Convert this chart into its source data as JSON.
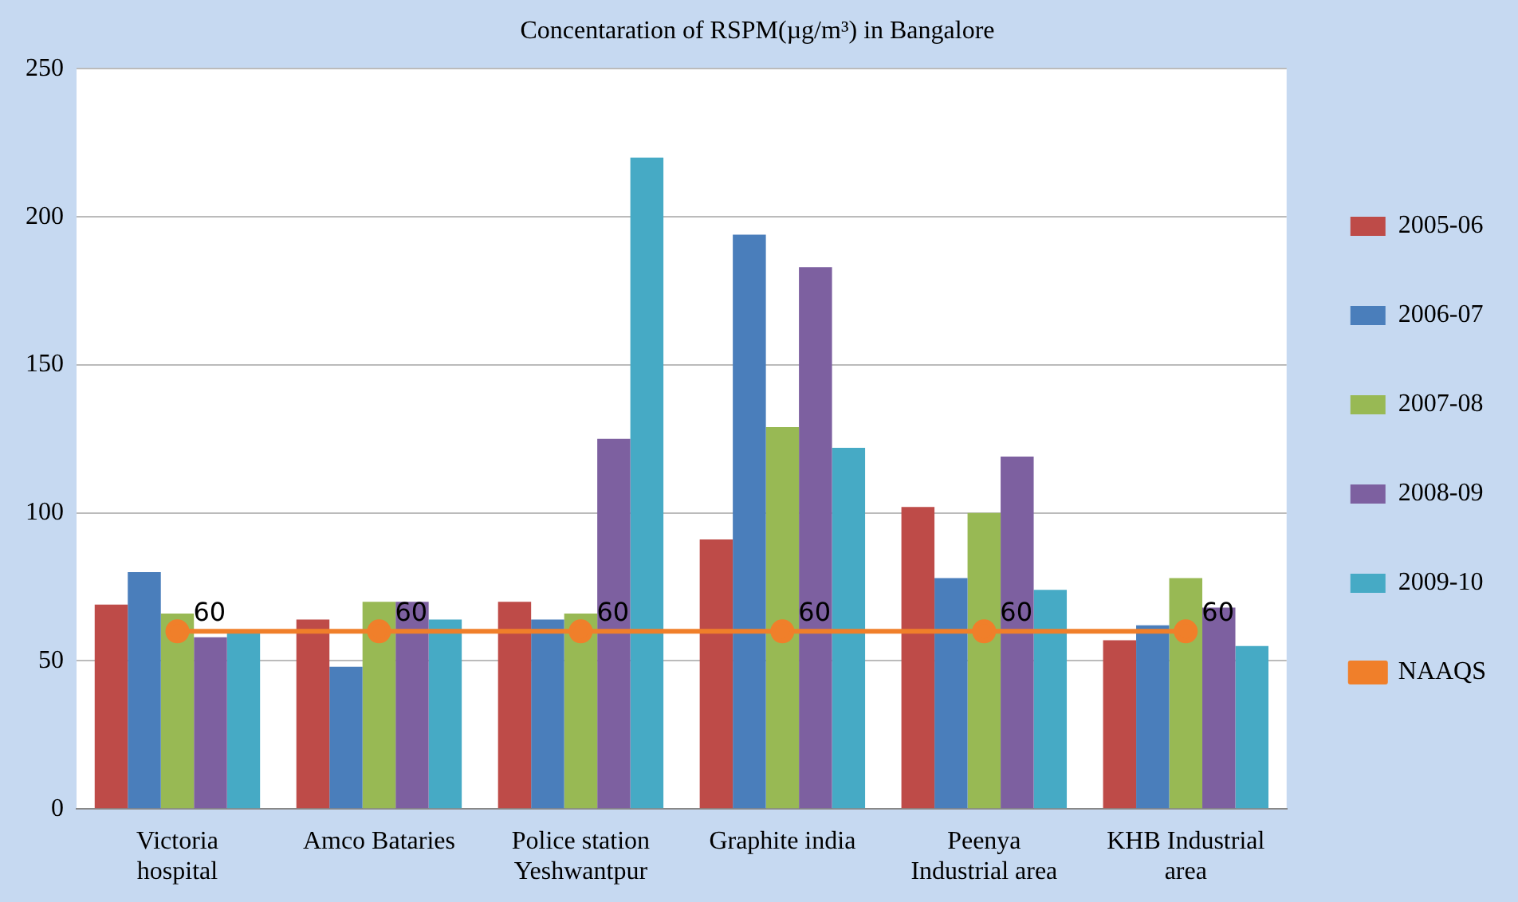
{
  "chart_data": {
    "type": "bar",
    "title": "Concentaration of RSPM(µg/m³) in Bangalore",
    "categories": [
      "Victoria\nhospital",
      "Amco Bataries",
      "Police station\nYeshwantpur",
      "Graphite india",
      "Peenya\nIndustrial area",
      "KHB Industrial\narea"
    ],
    "series": [
      {
        "name": "2005-06",
        "color": "#be4b48",
        "values": [
          69,
          64,
          70,
          91,
          102,
          57
        ]
      },
      {
        "name": "2006-07",
        "color": "#4a7ebb",
        "values": [
          80,
          48,
          64,
          194,
          78,
          62
        ]
      },
      {
        "name": "2007-08",
        "color": "#98b954",
        "values": [
          66,
          70,
          66,
          129,
          100,
          78
        ]
      },
      {
        "name": "2008-09",
        "color": "#7d60a0",
        "values": [
          58,
          70,
          125,
          183,
          119,
          68
        ]
      },
      {
        "name": "2009-10",
        "color": "#46aac5",
        "values": [
          60,
          64,
          220,
          122,
          74,
          55
        ]
      },
      {
        "name": "NAAQS",
        "type": "line",
        "color": "#f07f2a",
        "values": [
          60,
          60,
          60,
          60,
          60,
          60
        ],
        "value_labels": [
          "60",
          "60",
          "60",
          "60",
          "60",
          "60"
        ],
        "marker": "circle"
      }
    ],
    "ylim": [
      0,
      250
    ],
    "yticks": [
      0,
      50,
      100,
      150,
      200,
      250
    ],
    "grid": "y",
    "legend": "right"
  }
}
